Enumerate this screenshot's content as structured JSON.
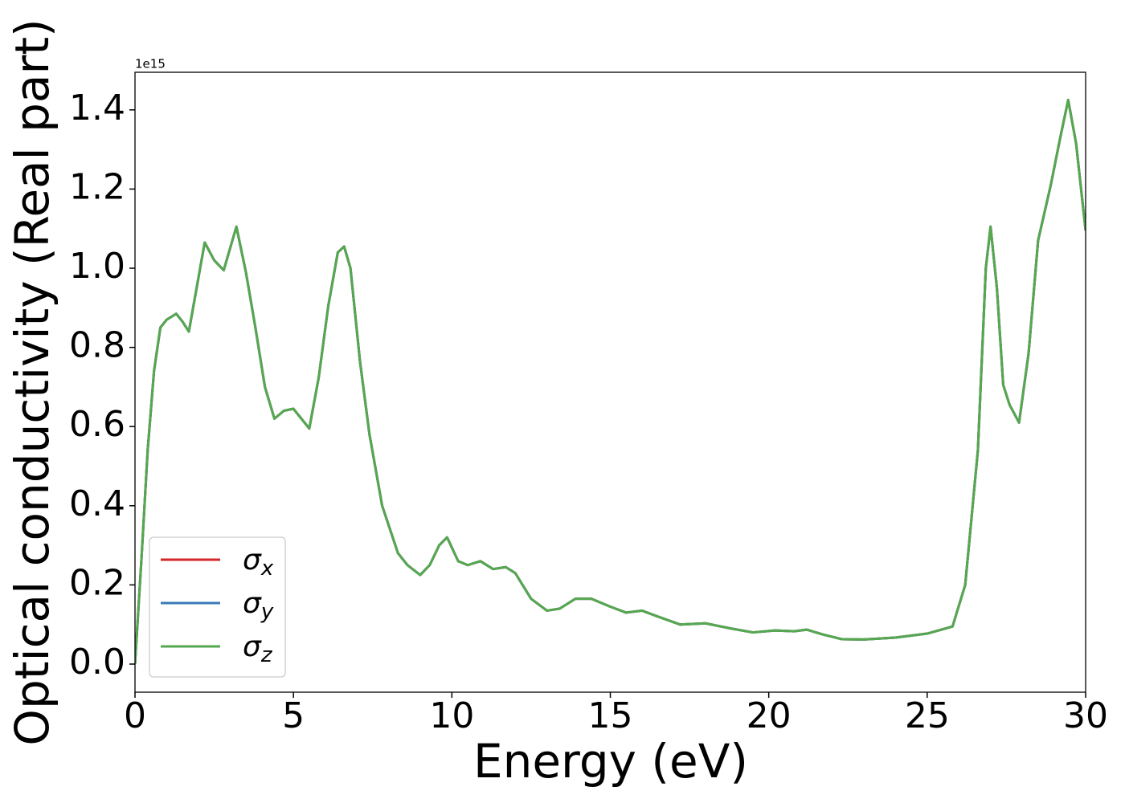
{
  "chart_data": {
    "type": "line",
    "xlabel": "Energy (eV)",
    "ylabel": "Optical conductivity (Real part)",
    "y_offset_label": "1e15",
    "x": [
      0,
      0.2,
      0.4,
      0.6,
      0.8,
      1.0,
      1.3,
      1.5,
      1.7,
      1.9,
      2.2,
      2.5,
      2.8,
      3.0,
      3.2,
      3.5,
      3.8,
      4.1,
      4.4,
      4.7,
      5.0,
      5.2,
      5.5,
      5.8,
      6.1,
      6.4,
      6.6,
      6.8,
      7.1,
      7.4,
      7.8,
      8.3,
      8.6,
      9.0,
      9.3,
      9.6,
      9.85,
      10.2,
      10.5,
      10.9,
      11.3,
      11.7,
      12.0,
      12.5,
      13.0,
      13.4,
      13.9,
      14.4,
      15.0,
      15.5,
      16.0,
      16.5,
      17.2,
      18.0,
      18.8,
      19.5,
      20.2,
      20.8,
      21.2,
      21.7,
      22.3,
      23.0,
      24.0,
      25.0,
      25.8,
      26.2,
      26.6,
      26.85,
      27.0,
      27.2,
      27.4,
      27.6,
      27.9,
      28.2,
      28.5,
      28.9,
      29.2,
      29.45,
      29.7,
      30.0
    ],
    "series": [
      {
        "name": "σx",
        "color": "#d62728",
        "values": [
          0,
          0.26,
          0.54,
          0.74,
          0.85,
          0.87,
          0.885,
          0.865,
          0.84,
          0.93,
          1.065,
          1.02,
          0.995,
          1.05,
          1.105,
          0.99,
          0.85,
          0.7,
          0.62,
          0.64,
          0.645,
          0.625,
          0.595,
          0.725,
          0.905,
          1.04,
          1.055,
          1.0,
          0.765,
          0.58,
          0.4,
          0.28,
          0.25,
          0.225,
          0.25,
          0.3,
          0.32,
          0.26,
          0.25,
          0.26,
          0.24,
          0.245,
          0.23,
          0.165,
          0.135,
          0.14,
          0.165,
          0.165,
          0.145,
          0.13,
          0.135,
          0.12,
          0.1,
          0.103,
          0.09,
          0.08,
          0.085,
          0.083,
          0.087,
          0.075,
          0.063,
          0.062,
          0.067,
          0.077,
          0.095,
          0.2,
          0.54,
          1.0,
          1.105,
          0.95,
          0.705,
          0.655,
          0.61,
          0.785,
          1.07,
          1.21,
          1.33,
          1.425,
          1.315,
          1.095
        ]
      },
      {
        "name": "σy",
        "color": "#3a7bb8",
        "values": [
          0,
          0.26,
          0.54,
          0.74,
          0.85,
          0.87,
          0.885,
          0.865,
          0.84,
          0.93,
          1.065,
          1.02,
          0.995,
          1.05,
          1.105,
          0.99,
          0.85,
          0.7,
          0.62,
          0.64,
          0.645,
          0.625,
          0.595,
          0.725,
          0.905,
          1.04,
          1.055,
          1.0,
          0.765,
          0.58,
          0.4,
          0.28,
          0.25,
          0.225,
          0.25,
          0.3,
          0.32,
          0.26,
          0.25,
          0.26,
          0.24,
          0.245,
          0.23,
          0.165,
          0.135,
          0.14,
          0.165,
          0.165,
          0.145,
          0.13,
          0.135,
          0.12,
          0.1,
          0.103,
          0.09,
          0.08,
          0.085,
          0.083,
          0.087,
          0.075,
          0.063,
          0.062,
          0.067,
          0.077,
          0.095,
          0.2,
          0.54,
          1.0,
          1.105,
          0.95,
          0.705,
          0.655,
          0.61,
          0.785,
          1.07,
          1.21,
          1.33,
          1.425,
          1.315,
          1.095
        ]
      },
      {
        "name": "σz",
        "color": "#55a84f",
        "values": [
          0,
          0.26,
          0.54,
          0.74,
          0.85,
          0.87,
          0.885,
          0.865,
          0.84,
          0.93,
          1.065,
          1.02,
          0.995,
          1.05,
          1.105,
          0.99,
          0.85,
          0.7,
          0.62,
          0.64,
          0.645,
          0.625,
          0.595,
          0.725,
          0.905,
          1.04,
          1.055,
          1.0,
          0.765,
          0.58,
          0.4,
          0.28,
          0.25,
          0.225,
          0.25,
          0.3,
          0.32,
          0.26,
          0.25,
          0.26,
          0.24,
          0.245,
          0.23,
          0.165,
          0.135,
          0.14,
          0.165,
          0.165,
          0.145,
          0.13,
          0.135,
          0.12,
          0.1,
          0.103,
          0.09,
          0.08,
          0.085,
          0.083,
          0.087,
          0.075,
          0.063,
          0.062,
          0.067,
          0.077,
          0.095,
          0.2,
          0.54,
          1.0,
          1.105,
          0.95,
          0.705,
          0.655,
          0.61,
          0.785,
          1.07,
          1.21,
          1.33,
          1.425,
          1.315,
          1.095
        ]
      }
    ],
    "xlim": [
      0,
      30
    ],
    "xticks": [
      0,
      5,
      10,
      15,
      20,
      25,
      30
    ],
    "ylim": [
      -0.071,
      1.495
    ],
    "yticks": [
      {
        "value": 0,
        "label": "0.0"
      },
      {
        "value": 0.2,
        "label": "0.2"
      },
      {
        "value": 0.4,
        "label": "0.4"
      },
      {
        "value": 0.6,
        "label": "0.6"
      },
      {
        "value": 0.8,
        "label": "0.8"
      },
      {
        "value": 1.0,
        "label": "1.0"
      },
      {
        "value": 1.2,
        "label": "1.2"
      },
      {
        "value": 1.4,
        "label": "1.4"
      }
    ],
    "grid": false,
    "legend": "lower left"
  }
}
